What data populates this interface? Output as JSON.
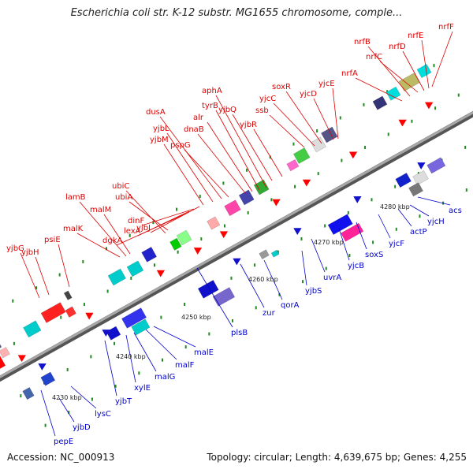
{
  "title": "Escherichia coli str. K-12 substr. MG1655 chromosome, comple...",
  "footer": {
    "accession": "Accession: NC_000913",
    "topology": "Topology: circular; Length: 4,639,675 bp; Genes: 4,255"
  },
  "colors": {
    "forward_label": "#dd0000",
    "reverse_label": "#0000cc",
    "backbone": "#808080",
    "tick_dot": "#228b22"
  },
  "ticks": [
    "4230 kbp",
    "4240 kbp",
    "4250 kbp",
    "4260 kbp",
    "4270 kbp",
    "4280 kbp"
  ],
  "forward_genes": [
    "yjbG",
    "yjbH",
    "psiE",
    "malK",
    "lamB",
    "malM",
    "ubiC",
    "ubiA",
    "dgkA",
    "lexA",
    "dinF",
    "yjbJ",
    "yjbM",
    "yjbL",
    "dusA",
    "pspG",
    "dnaB",
    "alr",
    "tyrB",
    "aphA",
    "yjbQ",
    "yjbR",
    "ssb",
    "soxR",
    "yjcC",
    "yjcD",
    "yjcE",
    "nrfA",
    "nrfB",
    "nrfC",
    "nrfD",
    "nrfE",
    "nrfF"
  ],
  "reverse_genes": [
    "pepE",
    "yjbD",
    "lysC",
    "yjbT",
    "xylE",
    "malG",
    "malF",
    "malE",
    "plsB",
    "zur",
    "qorA",
    "yjbS",
    "uvrA",
    "yjcB",
    "soxS",
    "yjcF",
    "actP",
    "yjcH",
    "acs"
  ]
}
